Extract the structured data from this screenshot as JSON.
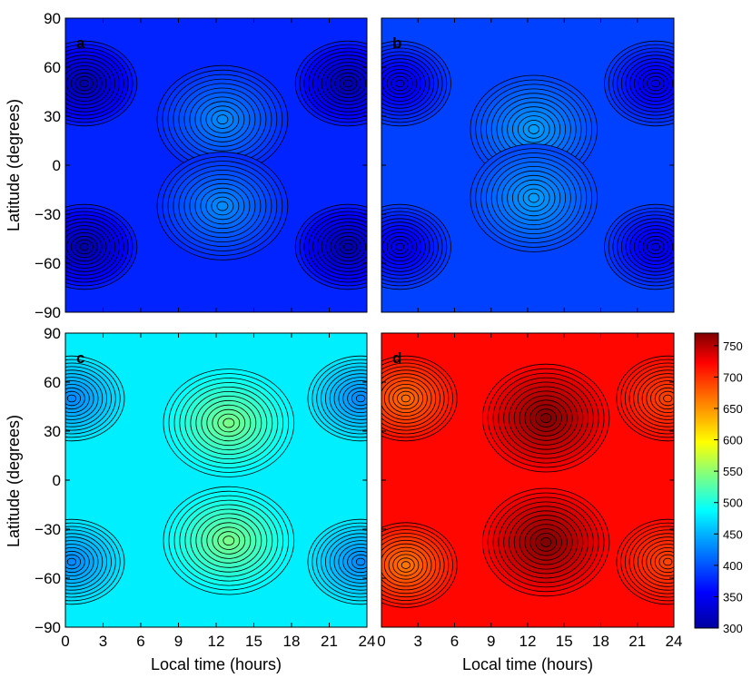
{
  "chart_data": {
    "type": "heatmap",
    "xlabel": "Local time (hours)",
    "ylabel": "Latitude (degrees)",
    "x_ticks": [
      0,
      3,
      6,
      9,
      12,
      15,
      18,
      21,
      24
    ],
    "y_ticks": [
      -90,
      -60,
      -30,
      0,
      30,
      60,
      90
    ],
    "y_tick_labels": [
      "−90",
      "−60",
      "−30",
      "0",
      "30",
      "60",
      "90"
    ],
    "xlim": [
      0,
      24
    ],
    "ylim": [
      -90,
      90
    ],
    "colorbar": {
      "ticks": [
        300,
        350,
        400,
        450,
        500,
        550,
        600,
        650,
        700,
        750
      ],
      "range": [
        300,
        770
      ],
      "colormap": "jet"
    },
    "panels": [
      {
        "letter": "a",
        "features": [
          {
            "kind": "max",
            "x": 12.5,
            "y": 28,
            "value": 430
          },
          {
            "kind": "max",
            "x": 12.5,
            "y": -25,
            "value": 430
          },
          {
            "kind": "min",
            "x": 1.5,
            "y": 50,
            "value": 305
          },
          {
            "kind": "min",
            "x": 22.5,
            "y": 50,
            "value": 305
          },
          {
            "kind": "min",
            "x": 1.5,
            "y": -50,
            "value": 305
          },
          {
            "kind": "min",
            "x": 22.5,
            "y": -50,
            "value": 305
          }
        ],
        "background": 375
      },
      {
        "letter": "b",
        "features": [
          {
            "kind": "max",
            "x": 12.5,
            "y": 22,
            "value": 440
          },
          {
            "kind": "max",
            "x": 12.5,
            "y": -20,
            "value": 440
          },
          {
            "kind": "min",
            "x": 1.5,
            "y": 50,
            "value": 340
          },
          {
            "kind": "min",
            "x": 22.5,
            "y": 50,
            "value": 340
          },
          {
            "kind": "min",
            "x": 1.5,
            "y": -50,
            "value": 340
          },
          {
            "kind": "min",
            "x": 22.5,
            "y": -50,
            "value": 340
          }
        ],
        "background": 390
      },
      {
        "letter": "c",
        "features": [
          {
            "kind": "max",
            "x": 13,
            "y": 35,
            "value": 540
          },
          {
            "kind": "max",
            "x": 13,
            "y": -37,
            "value": 540
          },
          {
            "kind": "min",
            "x": 0.5,
            "y": 50,
            "value": 430
          },
          {
            "kind": "min",
            "x": 23.5,
            "y": 50,
            "value": 430
          },
          {
            "kind": "min",
            "x": 0.5,
            "y": -50,
            "value": 430
          },
          {
            "kind": "min",
            "x": 23.5,
            "y": -50,
            "value": 430
          }
        ],
        "background": 480
      },
      {
        "letter": "d",
        "features": [
          {
            "kind": "max",
            "x": 13.5,
            "y": 38,
            "value": 770
          },
          {
            "kind": "max",
            "x": 13.5,
            "y": -38,
            "value": 770
          },
          {
            "kind": "min",
            "x": 2,
            "y": 50,
            "value": 670
          },
          {
            "kind": "min",
            "x": 2,
            "y": -52,
            "value": 665
          },
          {
            "kind": "min",
            "x": 23.5,
            "y": 50,
            "value": 690
          },
          {
            "kind": "min",
            "x": 23.5,
            "y": -50,
            "value": 690
          }
        ],
        "background": 720
      }
    ]
  }
}
